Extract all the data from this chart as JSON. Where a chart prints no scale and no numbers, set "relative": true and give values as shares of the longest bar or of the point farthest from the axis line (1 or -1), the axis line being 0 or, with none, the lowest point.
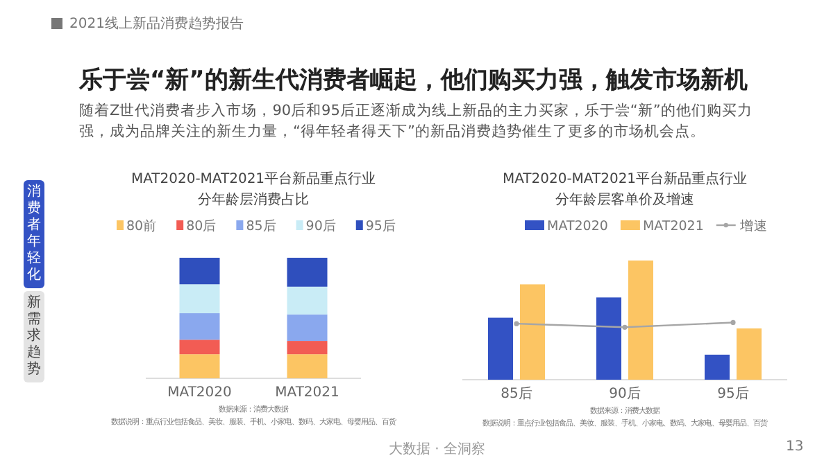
{
  "chart_data": [
    {
      "type": "other",
      "title": "乐于尝“新”的新生代消费者崛起，他们购买力强，触发市场新机",
      "subtitle": "随着Z世代消费者步入市场，90后和95后正逐渐成为线上新品的主力买家，乐于尝“新”的他们购买力强，成为品牌关注的新生力量，“得年轻者得天下”的新品消费趋势催生了更多的市场机会点。",
      "annotations": [
        "2021线上新品消费趋势报告",
        "消费者年轻化",
        "新需求趋势",
        "大数据 · 全洞察",
        "13"
      ]
    },
    {
      "type": "bar",
      "stacked": true,
      "relative": true,
      "title": "MAT2020-MAT2021平台新品重点行业",
      "subtitle": "分年龄层消费占比",
      "legend": "top",
      "categories": [
        "MAT2020",
        "MAT2021"
      ],
      "series": [
        {
          "name": "80前",
          "color": "#fcc563",
          "values": [
            0.2,
            0.2
          ]
        },
        {
          "name": "80后",
          "color": "#f25c54",
          "values": [
            0.12,
            0.11
          ]
        },
        {
          "name": "85后",
          "color": "#8aa8ee",
          "values": [
            0.22,
            0.22
          ]
        },
        {
          "name": "90后",
          "color": "#c9ecf6",
          "values": [
            0.24,
            0.23
          ]
        },
        {
          "name": "95后",
          "color": "#2f4fbd",
          "values": [
            0.22,
            0.24
          ]
        }
      ],
      "annotations": [
        "数据来源：消费大数据",
        "数据说明：重点行业包括食品、美妆、服装、手机、小家电、数码、大家电、母婴用品、百货"
      ]
    },
    {
      "type": "bar",
      "relative": true,
      "title": "MAT2020-MAT2021平台新品重点行业",
      "subtitle": "分年龄层客单价及增速",
      "legend": "top",
      "categories": [
        "85后",
        "90后",
        "95后"
      ],
      "series": [
        {
          "name": "MAT2020",
          "color": "#3352c4",
          "values": [
            0.52,
            0.69,
            0.21
          ]
        },
        {
          "name": "MAT2021",
          "color": "#fcc563",
          "values": [
            0.8,
            1,
            0.43
          ]
        },
        {
          "name": "增速",
          "type": "line",
          "marker": "circle",
          "color": "#a6a6a6",
          "values": [
            0.47,
            0.44,
            0.48
          ]
        }
      ],
      "annotations": [
        "数据来源：消费大数据",
        "数据说明：重点行业包括食品、美妆、服装、手机、小家电、数码、大家电、母婴用品、百货"
      ]
    }
  ]
}
